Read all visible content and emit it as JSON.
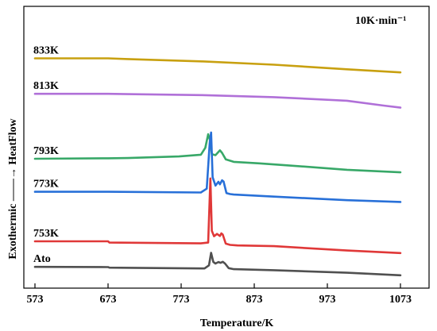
{
  "chart_data": {
    "type": "line",
    "title": "",
    "xlabel": "Temperature/K",
    "ylabel": "Exothermic ——→ HeatFlow",
    "annotation": "10K·min⁻¹",
    "xlim": [
      573,
      1073
    ],
    "xticks": [
      573,
      673,
      773,
      873,
      973,
      1073
    ],
    "grid": false,
    "legend": "none",
    "series": [
      {
        "name": "833K",
        "color": "#C8A010",
        "x": [
          573,
          673,
          700,
          800,
          900,
          1000,
          1073
        ],
        "y": [
          86.5,
          86.5,
          86.2,
          85.3,
          84.0,
          82.2,
          81.0
        ]
      },
      {
        "name": "813K",
        "color": "#B070D8",
        "x": [
          573,
          673,
          700,
          800,
          900,
          1000,
          1050,
          1073
        ],
        "y": [
          72.6,
          72.6,
          72.5,
          72.1,
          71.3,
          69.9,
          68.0,
          67.2
        ]
      },
      {
        "name": "793K",
        "color": "#38A868",
        "x": [
          573,
          673,
          700,
          770,
          800,
          806,
          810,
          813,
          815,
          820,
          826,
          829,
          834,
          845,
          880,
          920,
          1000,
          1073
        ],
        "y": [
          47.2,
          47.4,
          47.5,
          48.1,
          48.8,
          51.5,
          56.8,
          54.0,
          49.0,
          48.6,
          50.5,
          49.5,
          47.0,
          46.0,
          45.4,
          44.6,
          42.9,
          41.9
        ]
      },
      {
        "name": "773K",
        "color": "#2870D8",
        "x": [
          573,
          673,
          800,
          808,
          812,
          814,
          816,
          820,
          824,
          826,
          829,
          831,
          835,
          840,
          845,
          900,
          1000,
          1073
        ],
        "y": [
          34.3,
          34.3,
          34.0,
          35.5,
          53.2,
          57.5,
          40.0,
          36.7,
          38.2,
          37.2,
          38.8,
          38.3,
          33.8,
          33.4,
          33.2,
          32.4,
          31.0,
          30.3
        ]
      },
      {
        "name": "753K",
        "color": "#E03838",
        "x": [
          573,
          673,
          675,
          800,
          810,
          813,
          815,
          818,
          822,
          826,
          828,
          830,
          834,
          840,
          850,
          900,
          1000,
          1073
        ],
        "y": [
          14.9,
          14.9,
          14.4,
          14.1,
          14.4,
          39.5,
          19.0,
          16.9,
          17.8,
          17.0,
          18.0,
          17.5,
          14.0,
          13.5,
          13.3,
          13.0,
          11.3,
          10.3
        ]
      },
      {
        "name": "Ato",
        "color": "#505050",
        "x": [
          573,
          673,
          675,
          805,
          811,
          814,
          817,
          820,
          824,
          827,
          830,
          833,
          838,
          845,
          900,
          1000,
          1073
        ],
        "y": [
          4.9,
          4.8,
          4.6,
          4.3,
          5.5,
          10.4,
          6.8,
          6.2,
          6.8,
          6.5,
          6.9,
          6.2,
          4.4,
          4.0,
          3.6,
          2.6,
          1.6
        ]
      }
    ]
  }
}
